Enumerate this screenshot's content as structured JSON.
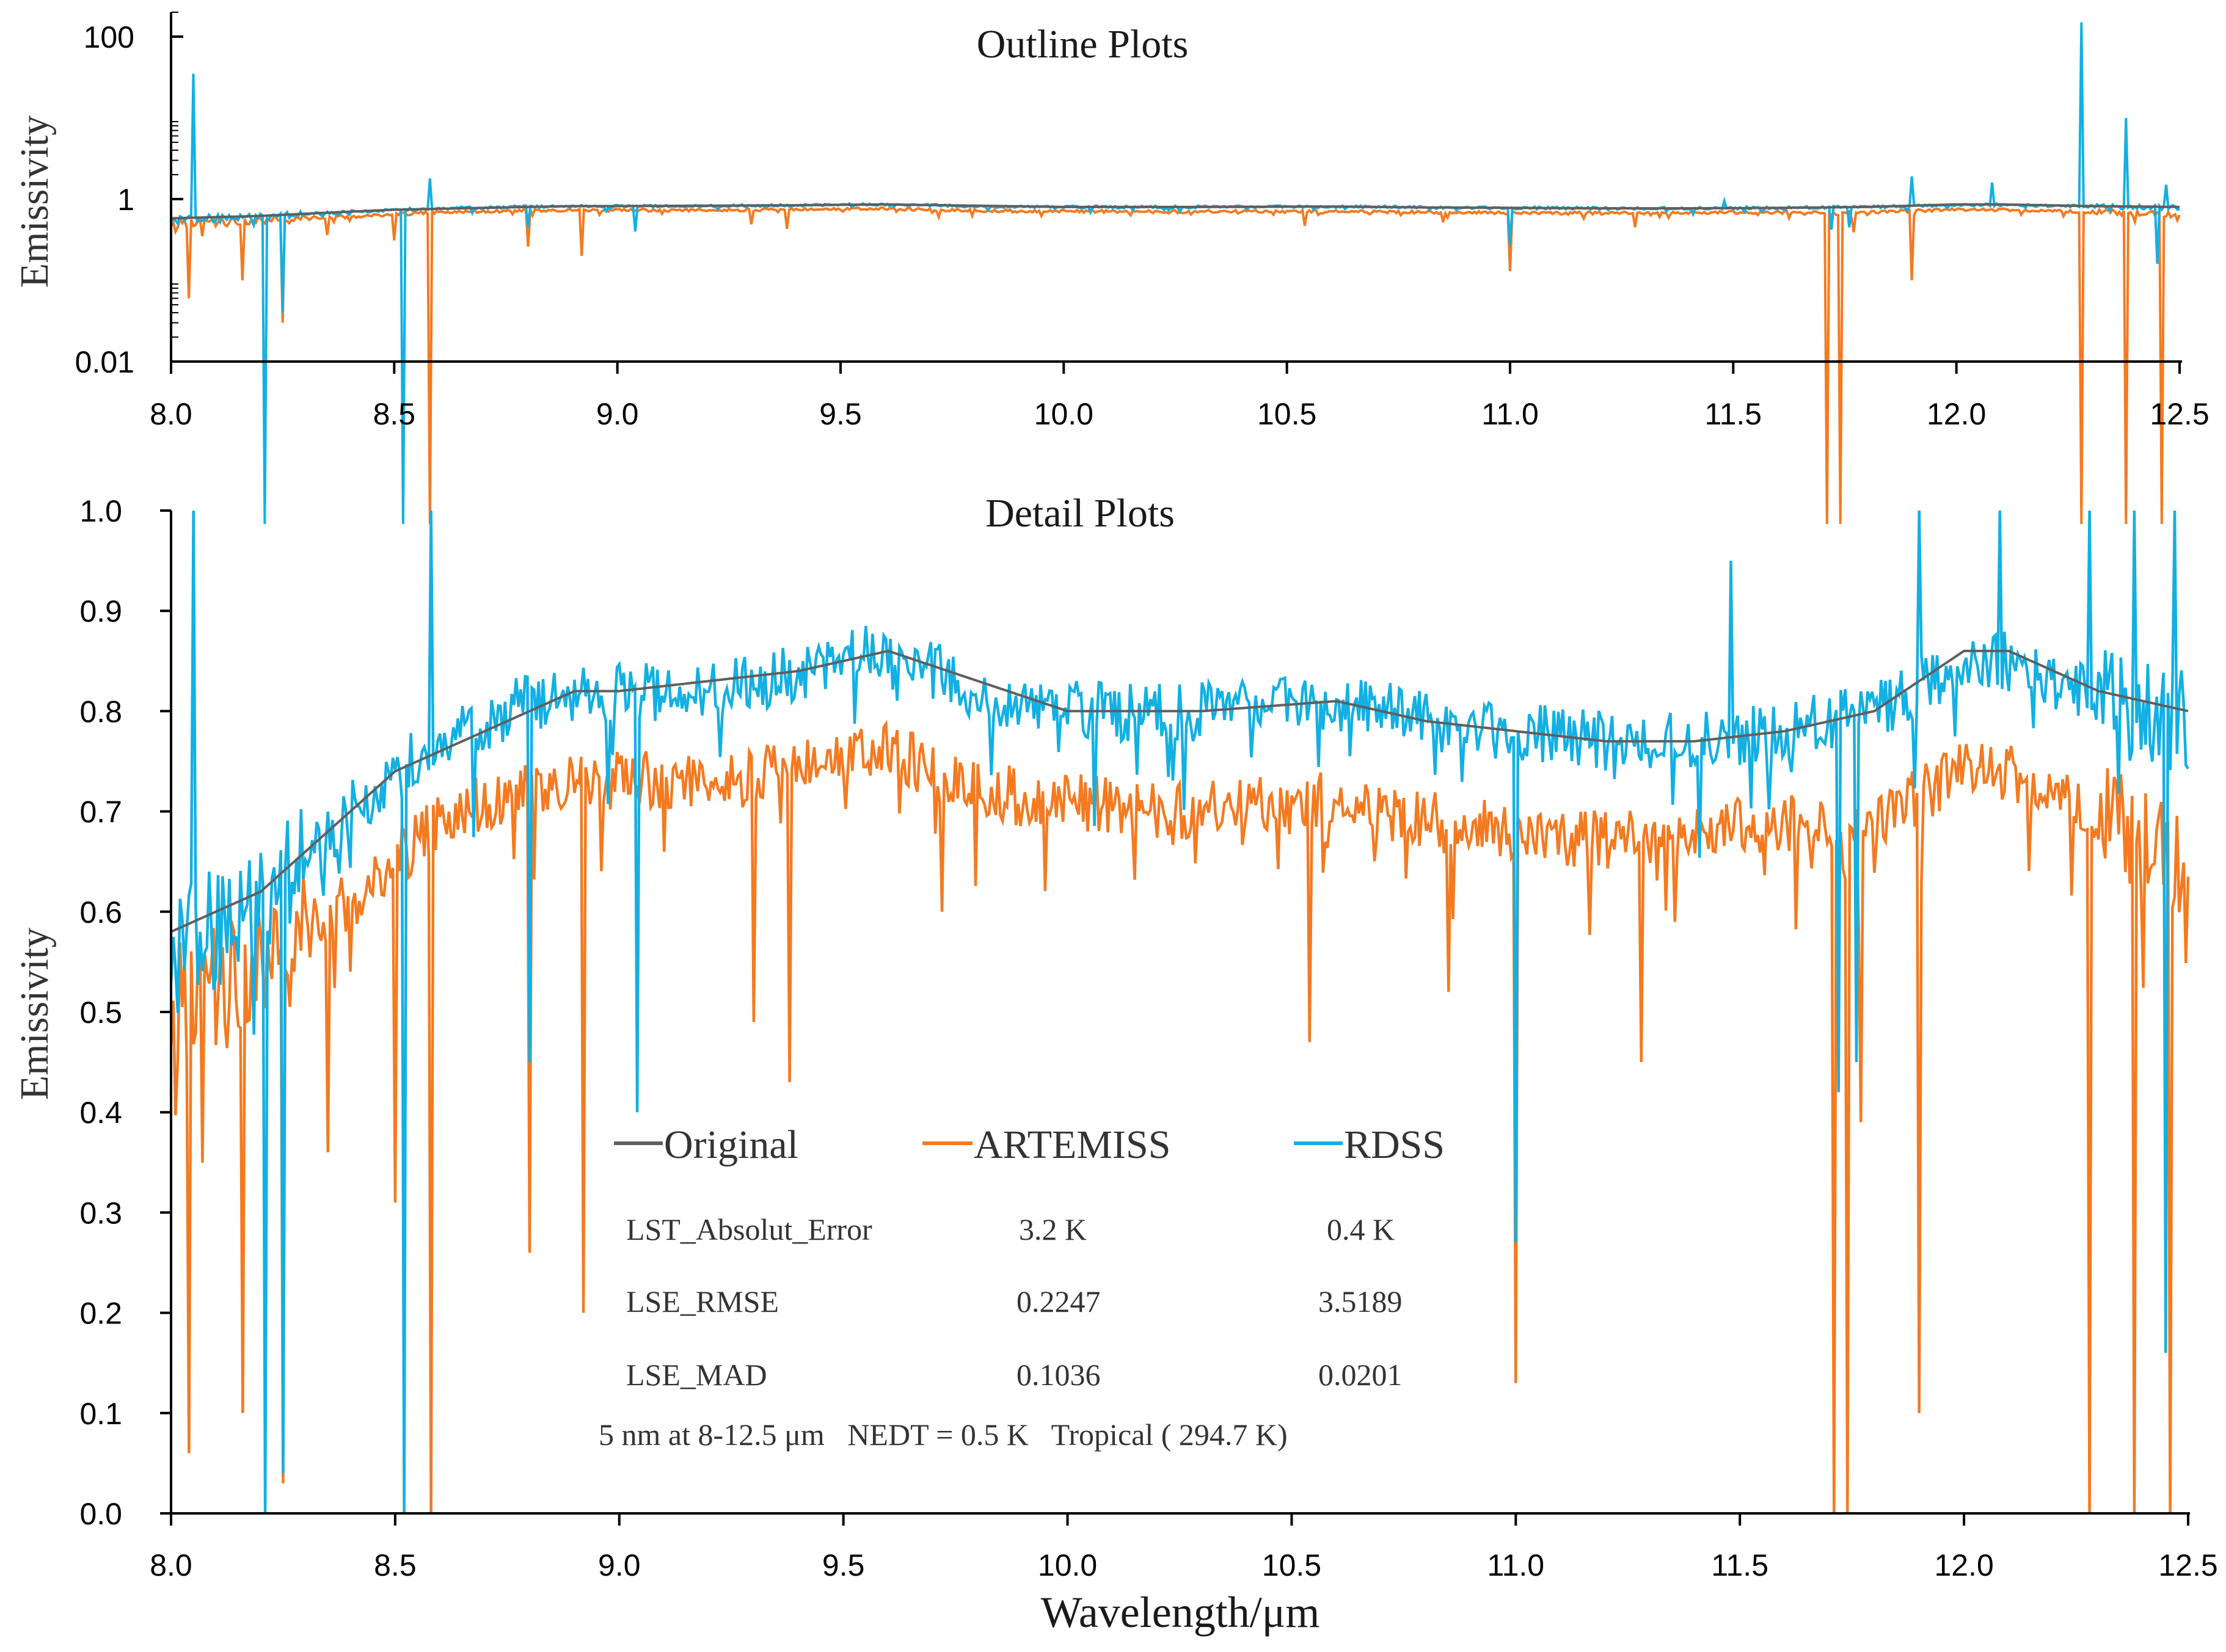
{
  "colors": {
    "original": "#5f5f5f",
    "artemiss": "#f47a20",
    "rdss": "#12b0e3",
    "axis": "#000000"
  },
  "chart_data": [
    {
      "id": "outline",
      "type": "line",
      "title": "Outline Plots",
      "xlabel": "",
      "ylabel": "Emissivity",
      "yscale": "log",
      "xlim": [
        8.0,
        12.5
      ],
      "ylim": [
        0.01,
        200
      ],
      "x_ticks": [
        "8.0",
        "8.5",
        "9.0",
        "9.5",
        "10.0",
        "10.5",
        "11.0",
        "11.5",
        "12.0",
        "12.5"
      ],
      "y_ticks": [
        {
          "value": 100,
          "label": "100"
        },
        {
          "value": 1,
          "label": "1"
        },
        {
          "value": 0.01,
          "label": "0.01"
        }
      ],
      "series": [
        {
          "name": "Original",
          "key": "original",
          "baseline": [
            [
              8.0,
              0.58
            ],
            [
              8.1,
              0.6
            ],
            [
              8.2,
              0.62
            ],
            [
              8.3,
              0.66
            ],
            [
              8.4,
              0.7
            ],
            [
              8.5,
              0.74
            ],
            [
              8.6,
              0.76
            ],
            [
              8.7,
              0.78
            ],
            [
              8.8,
              0.8
            ],
            [
              8.9,
              0.82
            ],
            [
              9.0,
              0.82
            ],
            [
              9.2,
              0.83
            ],
            [
              9.4,
              0.84
            ],
            [
              9.6,
              0.86
            ],
            [
              9.8,
              0.83
            ],
            [
              10.0,
              0.8
            ],
            [
              10.3,
              0.8
            ],
            [
              10.6,
              0.81
            ],
            [
              10.8,
              0.79
            ],
            [
              11.0,
              0.78
            ],
            [
              11.2,
              0.77
            ],
            [
              11.4,
              0.77
            ],
            [
              11.6,
              0.78
            ],
            [
              11.8,
              0.8
            ],
            [
              12.0,
              0.86
            ],
            [
              12.1,
              0.86
            ],
            [
              12.3,
              0.82
            ],
            [
              12.5,
              0.8
            ]
          ],
          "spikes": []
        },
        {
          "name": "ARTEMISS",
          "key": "artemiss",
          "baseline": [
            [
              8.0,
              0.5
            ],
            [
              8.1,
              0.52
            ],
            [
              8.2,
              0.55
            ],
            [
              8.3,
              0.58
            ],
            [
              8.4,
              0.61
            ],
            [
              8.5,
              0.65
            ],
            [
              8.6,
              0.69
            ],
            [
              8.7,
              0.71
            ],
            [
              8.8,
              0.72
            ],
            [
              9.0,
              0.73
            ],
            [
              9.2,
              0.73
            ],
            [
              9.4,
              0.74
            ],
            [
              9.6,
              0.76
            ],
            [
              9.8,
              0.72
            ],
            [
              10.0,
              0.71
            ],
            [
              10.3,
              0.7
            ],
            [
              10.6,
              0.71
            ],
            [
              10.8,
              0.69
            ],
            [
              11.0,
              0.68
            ],
            [
              11.2,
              0.67
            ],
            [
              11.4,
              0.68
            ],
            [
              11.6,
              0.69
            ],
            [
              11.8,
              0.69
            ],
            [
              12.0,
              0.74
            ],
            [
              12.1,
              0.74
            ],
            [
              12.3,
              0.7
            ],
            [
              12.5,
              0.64
            ]
          ],
          "spikes": [
            [
              8.04,
              0.06
            ],
            [
              8.16,
              0.1
            ],
            [
              8.25,
              0.03
            ],
            [
              8.35,
              0.36
            ],
            [
              8.5,
              0.31
            ],
            [
              8.58,
              0.0
            ],
            [
              8.8,
              0.26
            ],
            [
              8.92,
              0.2
            ],
            [
              9.3,
              0.49
            ],
            [
              9.38,
              0.43
            ],
            [
              9.72,
              0.6
            ],
            [
              10.54,
              0.47
            ],
            [
              10.85,
              0.52
            ],
            [
              11.0,
              0.13
            ],
            [
              11.28,
              0.45
            ],
            [
              11.71,
              0.0
            ],
            [
              11.74,
              0.0
            ],
            [
              11.77,
              0.39
            ],
            [
              11.9,
              0.1
            ],
            [
              12.28,
              0.0
            ],
            [
              12.38,
              0.0
            ],
            [
              12.46,
              0.0
            ]
          ]
        },
        {
          "name": "RDSS",
          "key": "rdss",
          "baseline": [
            [
              8.0,
              0.56
            ],
            [
              8.1,
              0.58
            ],
            [
              8.2,
              0.61
            ],
            [
              8.3,
              0.65
            ],
            [
              8.4,
              0.7
            ],
            [
              8.5,
              0.74
            ],
            [
              8.6,
              0.77
            ],
            [
              8.7,
              0.79
            ],
            [
              8.8,
              0.81
            ],
            [
              8.9,
              0.82
            ],
            [
              9.0,
              0.82
            ],
            [
              9.2,
              0.82
            ],
            [
              9.4,
              0.84
            ],
            [
              9.6,
              0.86
            ],
            [
              9.8,
              0.82
            ],
            [
              10.0,
              0.8
            ],
            [
              10.3,
              0.8
            ],
            [
              10.6,
              0.81
            ],
            [
              10.8,
              0.79
            ],
            [
              11.0,
              0.78
            ],
            [
              11.2,
              0.77
            ],
            [
              11.4,
              0.77
            ],
            [
              11.6,
              0.78
            ],
            [
              11.8,
              0.8
            ],
            [
              12.0,
              0.85
            ],
            [
              12.1,
              0.85
            ],
            [
              12.3,
              0.81
            ],
            [
              12.5,
              0.79
            ]
          ],
          "spikes": [
            [
              8.05,
              35
            ],
            [
              8.21,
              0.0
            ],
            [
              8.25,
              0.04
            ],
            [
              8.52,
              0.0
            ],
            [
              8.58,
              1.8
            ],
            [
              8.8,
              0.45
            ],
            [
              9.04,
              0.4
            ],
            [
              11.0,
              0.27
            ],
            [
              11.48,
              0.95
            ],
            [
              11.72,
              0.42
            ],
            [
              11.76,
              0.45
            ],
            [
              11.9,
              1.9
            ],
            [
              12.08,
              1.6
            ],
            [
              12.28,
              150
            ],
            [
              12.38,
              10
            ],
            [
              12.45,
              0.16
            ],
            [
              12.47,
              1.5
            ]
          ]
        }
      ]
    },
    {
      "id": "detail",
      "type": "line",
      "title": "Detail Plots",
      "xlabel": "Wavelength/μm",
      "ylabel": "Emissivity",
      "yscale": "linear",
      "xlim": [
        8.0,
        12.5
      ],
      "ylim": [
        0.0,
        1.0
      ],
      "x_ticks": [
        "8.0",
        "8.5",
        "9.0",
        "9.5",
        "10.0",
        "10.5",
        "11.0",
        "11.5",
        "12.0",
        "12.5"
      ],
      "y_ticks": [
        {
          "value": 1.0,
          "label": "1.0"
        },
        {
          "value": 0.9,
          "label": "0.9"
        },
        {
          "value": 0.8,
          "label": "0.8"
        },
        {
          "value": 0.7,
          "label": "0.7"
        },
        {
          "value": 0.6,
          "label": "0.6"
        },
        {
          "value": 0.5,
          "label": "0.5"
        },
        {
          "value": 0.4,
          "label": "0.4"
        },
        {
          "value": 0.3,
          "label": "0.3"
        },
        {
          "value": 0.2,
          "label": "0.2"
        },
        {
          "value": 0.1,
          "label": "0.1"
        },
        {
          "value": 0.0,
          "label": "0.0"
        }
      ],
      "legend": [
        "Original",
        "ARTEMISS",
        "RDSS"
      ]
    }
  ],
  "stats": {
    "rows": [
      {
        "label": "LST_Absolut_Error",
        "artemiss": "3.2 K",
        "rdss": "0.4 K"
      },
      {
        "label": "LSE_RMSE",
        "artemiss": "0.2247",
        "rdss": "3.5189"
      },
      {
        "label": "LSE_MAD",
        "artemiss": "0.1036",
        "rdss": "0.0201"
      }
    ],
    "footnote": "5 nm at 8-12.5 μm   NEDT = 0.5 K   Tropical ( 294.7 K)"
  }
}
